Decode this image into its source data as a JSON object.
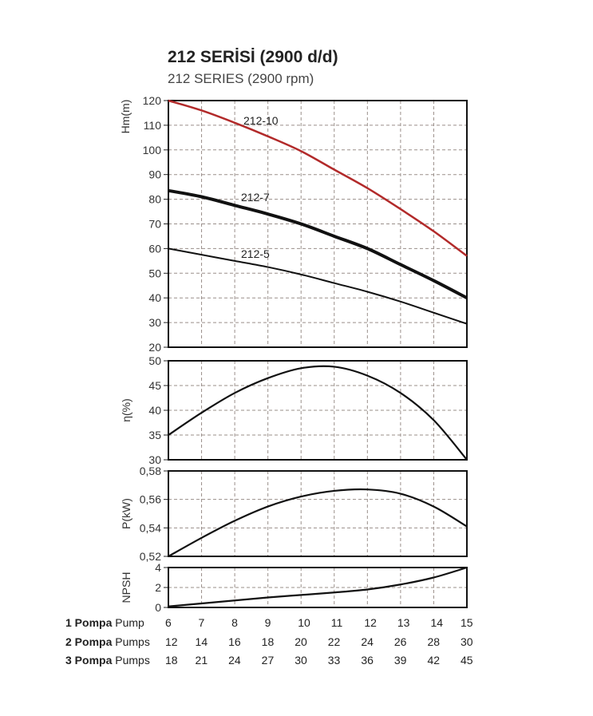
{
  "title": "212 SERİSİ (2900 d/d)",
  "subtitle": "212  SERIES (2900 rpm)",
  "rows": [
    {
      "bold": "1 Pompa",
      "text": "Pump",
      "values": [
        "6",
        "7",
        "8",
        "9",
        "10",
        "11",
        "12",
        "13",
        "14",
        "15"
      ]
    },
    {
      "bold": "2 Pompa",
      "text": "Pumps",
      "values": [
        "12",
        "14",
        "16",
        "18",
        "20",
        "22",
        "24",
        "26",
        "28",
        "30"
      ]
    },
    {
      "bold": "3 Pompa",
      "text": "Pumps",
      "values": [
        "18",
        "21",
        "24",
        "27",
        "30",
        "33",
        "36",
        "39",
        "42",
        "45"
      ]
    }
  ],
  "chart_data": [
    {
      "type": "line",
      "ylabel": "Hm(m)",
      "ylim": [
        20,
        120
      ],
      "yticks": [
        "20",
        "30",
        "40",
        "50",
        "60",
        "70",
        "80",
        "90",
        "100",
        "110",
        "120"
      ],
      "x": [
        6,
        7,
        8,
        9,
        10,
        11,
        12,
        13,
        14,
        15
      ],
      "series": [
        {
          "name": "212-10",
          "color": "#b22a2a",
          "width": 2.5,
          "values": [
            120,
            116,
            111,
            105.5,
            99.5,
            92,
            84.5,
            76,
            67,
            57
          ]
        },
        {
          "name": "212-7",
          "color": "#111111",
          "width": 4,
          "values": [
            83.5,
            81,
            77.5,
            74,
            70,
            65,
            60,
            53.5,
            47,
            40
          ]
        },
        {
          "name": "212-5",
          "color": "#111111",
          "width": 2,
          "values": [
            60,
            57.5,
            55,
            52.5,
            49.5,
            46,
            42.5,
            38.5,
            34,
            29.5
          ]
        }
      ]
    },
    {
      "type": "line",
      "ylabel": "η(%)",
      "ylim": [
        30,
        50
      ],
      "yticks": [
        "30",
        "35",
        "40",
        "45",
        "50"
      ],
      "x": [
        6,
        7,
        8,
        9,
        10,
        11,
        12,
        13,
        14,
        15
      ],
      "series": [
        {
          "name": "efficiency",
          "color": "#111111",
          "width": 2.2,
          "values": [
            35,
            39.5,
            43.5,
            46.5,
            48.5,
            48.8,
            47,
            43.5,
            38,
            30
          ]
        }
      ]
    },
    {
      "type": "line",
      "ylabel": "P(kW)",
      "ylim": [
        0.52,
        0.58
      ],
      "yticks": [
        "0,52",
        "0,54",
        "0,56",
        "0,58"
      ],
      "x": [
        6,
        7,
        8,
        9,
        10,
        11,
        12,
        13,
        14,
        15
      ],
      "series": [
        {
          "name": "power",
          "color": "#111111",
          "width": 2.2,
          "values": [
            0.52,
            0.533,
            0.545,
            0.555,
            0.562,
            0.566,
            0.567,
            0.564,
            0.555,
            0.541
          ]
        }
      ]
    },
    {
      "type": "line",
      "ylabel": "NPSH",
      "ylim": [
        0,
        4
      ],
      "yticks": [
        "0",
        "2",
        "4"
      ],
      "x": [
        6,
        7,
        8,
        9,
        10,
        11,
        12,
        13,
        14,
        15
      ],
      "series": [
        {
          "name": "npsh",
          "color": "#111111",
          "width": 2.2,
          "values": [
            0.1,
            0.4,
            0.7,
            1.0,
            1.25,
            1.5,
            1.8,
            2.3,
            3.0,
            4.0
          ]
        }
      ]
    }
  ]
}
